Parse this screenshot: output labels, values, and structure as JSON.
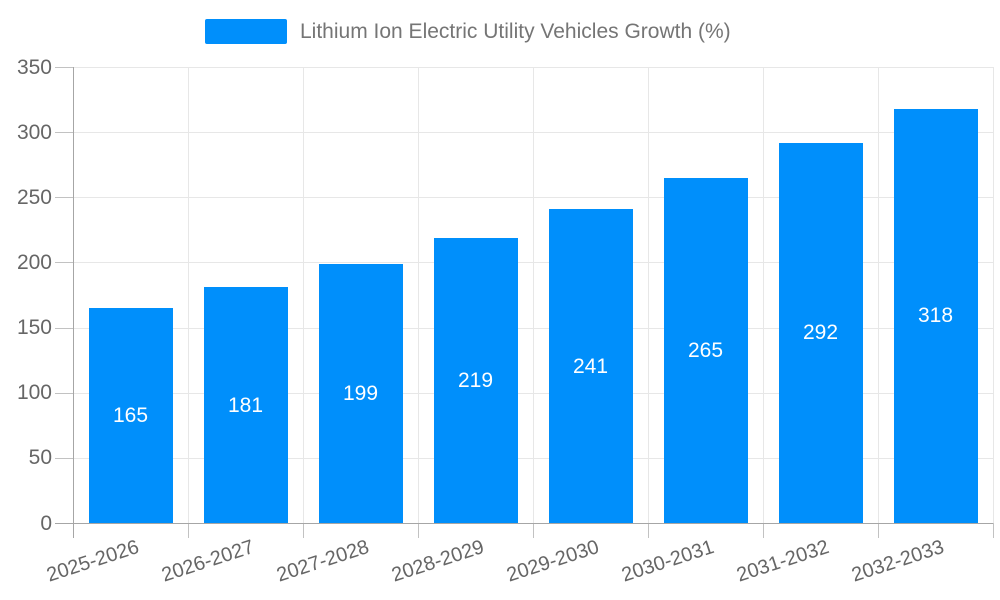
{
  "legend": {
    "label": "Lithium Ion Electric Utility Vehicles Growth (%)",
    "swatch_color": "#008FFB"
  },
  "chart_data": {
    "type": "bar",
    "title": "Lithium Ion Electric Utility Vehicles Growth (%)",
    "categories": [
      "2025-2026",
      "2026-2027",
      "2027-2028",
      "2028-2029",
      "2029-2030",
      "2030-2031",
      "2031-2032",
      "2032-2033"
    ],
    "values": [
      165,
      181,
      199,
      219,
      241,
      265,
      292,
      318
    ],
    "xlabel": "",
    "ylabel": "",
    "ylim": [
      0,
      350
    ],
    "yticks": [
      0,
      50,
      100,
      150,
      200,
      250,
      300,
      350
    ],
    "grid": true,
    "legend_position": "top",
    "bar_color": "#008FFB",
    "value_label_color": "#ffffff"
  },
  "colors": {
    "grid": "#e7e7e7",
    "axis": "#a6a6a6",
    "tick": "#c2c2c2",
    "axis_text": "#666666",
    "legend_text": "#757575"
  }
}
